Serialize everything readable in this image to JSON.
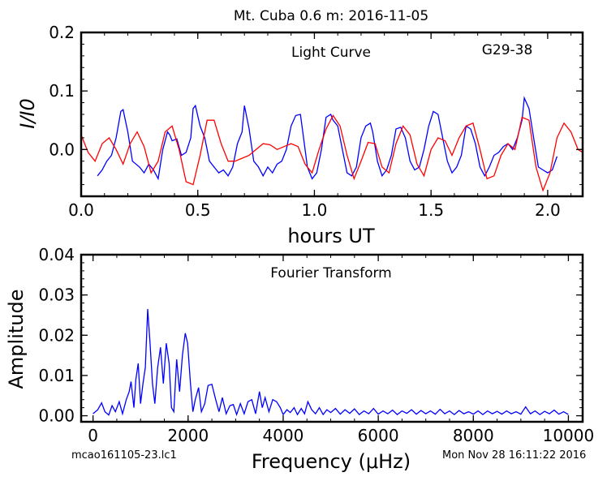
{
  "figure": {
    "title": "Mt. Cuba 0.6 m:  2016-11-05",
    "footer_left": "mcao161105-23.lc1",
    "footer_right": "Mon Nov 28 16:11:22 2016"
  },
  "chart_data": [
    {
      "type": "line",
      "panel": "top",
      "annotation": "Light Curve",
      "object_label": "G29-38",
      "xlabel": "hours UT",
      "ylabel": "I/I0",
      "xlim": [
        0.0,
        2.15
      ],
      "ylim": [
        -0.08,
        0.2
      ],
      "xticks": [
        0.0,
        0.5,
        1.0,
        1.5,
        2.0
      ],
      "xtick_labels": [
        "0.0",
        "0.5",
        "1.0",
        "1.5",
        "2.0"
      ],
      "yticks": [
        0.0,
        0.1,
        0.2
      ],
      "ytick_labels": [
        "0.0",
        "0.1",
        "0.2"
      ],
      "grid": false,
      "series": [
        {
          "color": "#0000ff",
          "x": [
            0.07,
            0.09,
            0.11,
            0.13,
            0.15,
            0.17,
            0.18,
            0.2,
            0.22,
            0.25,
            0.27,
            0.29,
            0.31,
            0.33,
            0.35,
            0.37,
            0.38,
            0.39,
            0.41,
            0.43,
            0.45,
            0.47,
            0.48,
            0.49,
            0.51,
            0.53,
            0.55,
            0.57,
            0.59,
            0.61,
            0.63,
            0.65,
            0.67,
            0.69,
            0.7,
            0.72,
            0.74,
            0.76,
            0.78,
            0.8,
            0.82,
            0.84,
            0.86,
            0.88,
            0.9,
            0.92,
            0.94,
            0.95,
            0.97,
            0.99,
            1.01,
            1.03,
            1.05,
            1.07,
            1.08,
            1.1,
            1.12,
            1.14,
            1.16,
            1.18,
            1.2,
            1.22,
            1.24,
            1.25,
            1.27,
            1.29,
            1.31,
            1.33,
            1.35,
            1.37,
            1.39,
            1.41,
            1.43,
            1.45,
            1.47,
            1.49,
            1.51,
            1.53,
            1.55,
            1.57,
            1.59,
            1.61,
            1.63,
            1.65,
            1.67,
            1.69,
            1.71,
            1.73,
            1.75,
            1.77,
            1.79,
            1.81,
            1.83,
            1.85,
            1.87,
            1.89,
            1.9,
            1.92,
            1.94,
            1.96,
            1.98,
            2.0,
            2.02,
            2.04
          ],
          "y": [
            -0.045,
            -0.035,
            -0.02,
            -0.01,
            0.02,
            0.065,
            0.068,
            0.03,
            -0.02,
            -0.03,
            -0.04,
            -0.025,
            -0.035,
            -0.05,
            0.0,
            0.03,
            0.025,
            0.015,
            0.018,
            -0.01,
            -0.005,
            0.02,
            0.07,
            0.075,
            0.04,
            0.02,
            -0.02,
            -0.03,
            -0.04,
            -0.035,
            -0.045,
            -0.03,
            0.01,
            0.03,
            0.075,
            0.035,
            -0.02,
            -0.03,
            -0.045,
            -0.03,
            -0.04,
            -0.025,
            -0.02,
            0.0,
            0.04,
            0.058,
            0.06,
            0.03,
            -0.03,
            -0.05,
            -0.04,
            0.0,
            0.055,
            0.06,
            0.05,
            0.04,
            0.0,
            -0.04,
            -0.045,
            -0.03,
            0.02,
            0.04,
            0.045,
            0.03,
            -0.02,
            -0.045,
            -0.035,
            -0.01,
            0.035,
            0.038,
            0.02,
            -0.02,
            -0.035,
            -0.03,
            0.0,
            0.04,
            0.065,
            0.06,
            0.02,
            -0.02,
            -0.04,
            -0.03,
            -0.01,
            0.04,
            0.035,
            0.01,
            -0.03,
            -0.045,
            -0.03,
            -0.01,
            -0.005,
            0.005,
            0.01,
            0.0,
            0.02,
            0.05,
            0.088,
            0.07,
            0.02,
            -0.03,
            -0.035,
            -0.04,
            -0.035,
            -0.012
          ]
        },
        {
          "color": "#ff0000",
          "x": [
            0.0,
            0.03,
            0.06,
            0.09,
            0.12,
            0.15,
            0.18,
            0.21,
            0.24,
            0.27,
            0.3,
            0.33,
            0.36,
            0.39,
            0.42,
            0.45,
            0.48,
            0.51,
            0.54,
            0.57,
            0.6,
            0.63,
            0.66,
            0.69,
            0.72,
            0.75,
            0.78,
            0.81,
            0.84,
            0.87,
            0.9,
            0.93,
            0.96,
            0.99,
            1.02,
            1.05,
            1.08,
            1.11,
            1.14,
            1.17,
            1.2,
            1.23,
            1.26,
            1.29,
            1.32,
            1.35,
            1.38,
            1.41,
            1.44,
            1.47,
            1.5,
            1.53,
            1.56,
            1.59,
            1.62,
            1.65,
            1.68,
            1.71,
            1.74,
            1.77,
            1.8,
            1.83,
            1.86,
            1.89,
            1.92,
            1.95,
            1.98,
            2.01,
            2.04,
            2.07,
            2.1,
            2.13,
            2.15
          ],
          "y": [
            0.025,
            -0.005,
            -0.02,
            0.01,
            0.02,
            0.0,
            -0.025,
            0.01,
            0.03,
            0.005,
            -0.04,
            -0.02,
            0.03,
            0.04,
            0.0,
            -0.055,
            -0.06,
            -0.01,
            0.05,
            0.05,
            0.01,
            -0.02,
            -0.02,
            -0.015,
            -0.01,
            0.0,
            0.01,
            0.008,
            0.0,
            0.005,
            0.01,
            0.005,
            -0.025,
            -0.04,
            0.0,
            0.035,
            0.058,
            0.04,
            -0.01,
            -0.05,
            -0.02,
            0.012,
            0.01,
            -0.03,
            -0.04,
            0.01,
            0.04,
            0.025,
            -0.025,
            -0.045,
            0.0,
            0.02,
            0.015,
            -0.01,
            0.02,
            0.04,
            0.045,
            0.0,
            -0.05,
            -0.045,
            -0.01,
            0.01,
            0.0,
            0.055,
            0.05,
            -0.03,
            -0.07,
            -0.04,
            0.02,
            0.045,
            0.03,
            0.0,
            -0.005
          ]
        }
      ]
    },
    {
      "type": "line",
      "panel": "bottom",
      "annotation": "Fourier Transform",
      "xlabel": "Frequency (μHz)",
      "ylabel": "Amplitude",
      "xlim": [
        -250,
        10300
      ],
      "ylim": [
        -0.0015,
        0.04
      ],
      "xticks": [
        0,
        2000,
        4000,
        6000,
        8000,
        10000
      ],
      "xtick_labels": [
        "0",
        "2000",
        "4000",
        "6000",
        "8000",
        "10000"
      ],
      "yticks": [
        0.0,
        0.01,
        0.02,
        0.03,
        0.04
      ],
      "ytick_labels": [
        "0.00",
        "0.01",
        "0.02",
        "0.03",
        "0.04"
      ],
      "grid": false,
      "series": [
        {
          "color": "#0000ff",
          "x": [
            0,
            100,
            180,
            250,
            330,
            400,
            470,
            550,
            620,
            700,
            760,
            800,
            860,
            900,
            950,
            1000,
            1050,
            1100,
            1150,
            1200,
            1250,
            1300,
            1360,
            1420,
            1480,
            1540,
            1600,
            1650,
            1700,
            1760,
            1820,
            1880,
            1940,
            1990,
            2050,
            2100,
            2150,
            2220,
            2280,
            2350,
            2420,
            2500,
            2580,
            2650,
            2720,
            2800,
            2880,
            2950,
            3020,
            3100,
            3180,
            3260,
            3340,
            3420,
            3500,
            3560,
            3620,
            3700,
            3780,
            3860,
            3940,
            4000,
            4080,
            4150,
            4230,
            4300,
            4380,
            4450,
            4520,
            4600,
            4680,
            4760,
            4840,
            4920,
            5000,
            5100,
            5200,
            5300,
            5400,
            5500,
            5600,
            5700,
            5800,
            5900,
            6000,
            6100,
            6200,
            6300,
            6400,
            6500,
            6600,
            6700,
            6800,
            6900,
            7000,
            7100,
            7200,
            7300,
            7400,
            7500,
            7600,
            7700,
            7800,
            7900,
            8000,
            8100,
            8200,
            8300,
            8400,
            8500,
            8600,
            8700,
            8800,
            8900,
            9000,
            9100,
            9200,
            9300,
            9400,
            9500,
            9600,
            9700,
            9800,
            9900,
            10000
          ],
          "y": [
            0.0005,
            0.0015,
            0.0032,
            0.001,
            0.0002,
            0.0025,
            0.001,
            0.0035,
            0.0005,
            0.004,
            0.006,
            0.0085,
            0.002,
            0.009,
            0.013,
            0.003,
            0.008,
            0.012,
            0.0265,
            0.018,
            0.008,
            0.003,
            0.012,
            0.017,
            0.008,
            0.018,
            0.013,
            0.002,
            0.001,
            0.014,
            0.006,
            0.015,
            0.0205,
            0.018,
            0.008,
            0.001,
            0.004,
            0.007,
            0.001,
            0.003,
            0.0075,
            0.0078,
            0.004,
            0.001,
            0.0045,
            0.0005,
            0.0025,
            0.0028,
            0.0003,
            0.003,
            0.0005,
            0.0035,
            0.004,
            0.0005,
            0.006,
            0.002,
            0.0045,
            0.001,
            0.004,
            0.0035,
            0.002,
            0.0003,
            0.0015,
            0.0008,
            0.002,
            0.0003,
            0.0018,
            0.0005,
            0.0035,
            0.0015,
            0.0005,
            0.002,
            0.0003,
            0.0015,
            0.0008,
            0.0018,
            0.0004,
            0.0015,
            0.0006,
            0.0017,
            0.0003,
            0.0012,
            0.0005,
            0.0018,
            0.0004,
            0.0012,
            0.0005,
            0.0014,
            0.0003,
            0.0012,
            0.0006,
            0.0015,
            0.0004,
            0.0013,
            0.0005,
            0.0012,
            0.0004,
            0.0016,
            0.0005,
            0.0012,
            0.0003,
            0.0013,
            0.0005,
            0.001,
            0.0004,
            0.0012,
            0.0003,
            0.0012,
            0.0005,
            0.0011,
            0.0004,
            0.0012,
            0.0005,
            0.001,
            0.0004,
            0.0022,
            0.0005,
            0.0012,
            0.0003,
            0.0011,
            0.0005,
            0.0014,
            0.0004,
            0.001,
            0.0003
          ]
        }
      ]
    }
  ]
}
